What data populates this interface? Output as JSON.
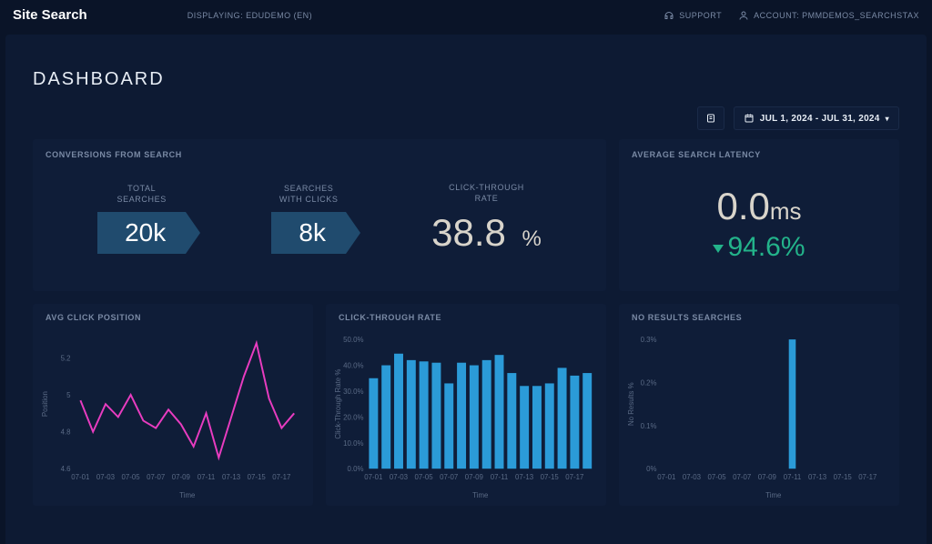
{
  "topbar": {
    "brand": "Site Search",
    "displaying": "DISPLAYING: EDUDEMO (EN)",
    "support": "SUPPORT",
    "account_label": "ACCOUNT: PMMDEMOS_SEARCHSTAX"
  },
  "page": {
    "title": "DASHBOARD",
    "date_range": "JUL 1, 2024 - JUL 31, 2024"
  },
  "conversions": {
    "header": "CONVERSIONS FROM SEARCH",
    "total_label": "TOTAL\nSEARCHES",
    "total_value": "20k",
    "clicks_label": "SEARCHES\nWITH CLICKS",
    "clicks_value": "8k",
    "ctr_label": "CLICK-THROUGH\nRATE",
    "ctr_value": "38.8",
    "ctr_unit": "%"
  },
  "latency": {
    "header": "AVERAGE SEARCH LATENCY",
    "value": "0.0",
    "unit": "ms",
    "pct": "94.6%"
  },
  "charts": {
    "x_ticks": [
      "07-01",
      "07-03",
      "07-05",
      "07-07",
      "07-09",
      "07-11",
      "07-13",
      "07-15",
      "07-17"
    ],
    "x_title": "Time",
    "avg_click": {
      "header": "AVG CLICK POSITION",
      "type": "line",
      "y_title": "Position",
      "ylim": [
        4.6,
        5.3
      ],
      "y_ticks": [
        4.6,
        4.8,
        5.0,
        5.2
      ],
      "color": "#e83cc0",
      "line_width": 2,
      "values": [
        4.97,
        4.8,
        4.95,
        4.88,
        5.0,
        4.86,
        4.82,
        4.92,
        4.84,
        4.72,
        4.9,
        4.66,
        4.88,
        5.1,
        5.28,
        4.98,
        4.82,
        4.9
      ]
    },
    "ctr": {
      "header": "CLICK-THROUGH RATE",
      "type": "bar",
      "y_title": "Click-Through Rate %",
      "ylim": [
        0,
        50
      ],
      "y_ticks": [
        0,
        10,
        20,
        30,
        40,
        50
      ],
      "y_tick_suffix": ".0%",
      "color": "#2b9bd8",
      "bar_width": 0.72,
      "values": [
        35,
        40,
        44.5,
        42,
        41.5,
        41,
        33,
        41,
        40,
        42,
        44,
        37,
        32,
        32,
        33,
        39,
        36,
        37
      ]
    },
    "no_results": {
      "header": "NO RESULTS SEARCHES",
      "type": "bar",
      "y_title": "No Results %",
      "ylim": [
        0,
        0.3
      ],
      "y_ticks": [
        0,
        0.1,
        0.2,
        0.3
      ],
      "y_tick_suffix": "%",
      "color": "#2b9bd8",
      "bar_width": 0.55,
      "values": [
        0,
        0,
        0,
        0,
        0,
        0,
        0,
        0,
        0,
        0,
        0.3,
        0,
        0,
        0,
        0,
        0,
        0,
        0
      ]
    }
  },
  "colors": {
    "bg": "#0a1428",
    "panel": "#0f1d38",
    "muted": "#7a8aa5",
    "grid": "#1a2a48"
  }
}
